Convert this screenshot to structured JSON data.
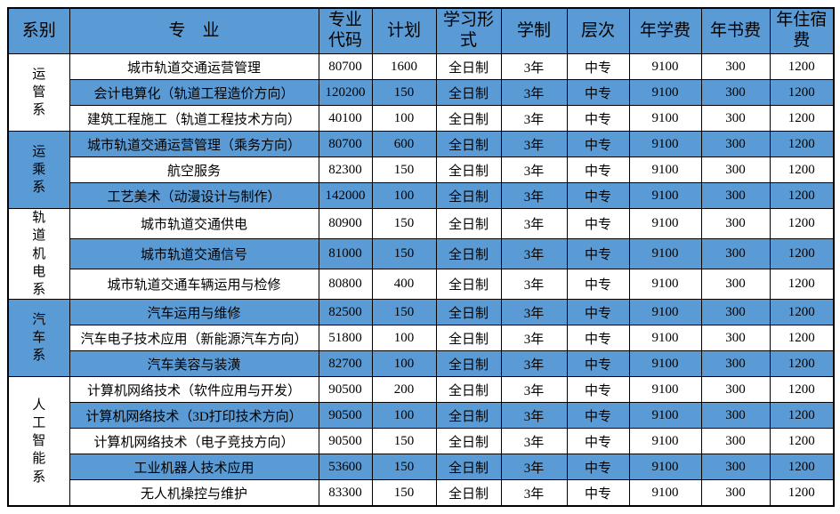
{
  "colors": {
    "header_bg": "#5B9BD5",
    "stripe_bg": "#5B9BD5",
    "border": "#000000",
    "text": "#000000"
  },
  "table": {
    "headers": [
      "系别",
      "专　业",
      "专业代码",
      "计划",
      "学习形式",
      "学制",
      "层次",
      "年学费",
      "年书费",
      "年住宿费"
    ],
    "departments": [
      {
        "name": "运管系",
        "rows": [
          {
            "major": "城市轨道交通运营管理",
            "code": "80700",
            "plan": "1600",
            "form": "全日制",
            "duration": "3年",
            "level": "中专",
            "tuition": "9100",
            "book": "300",
            "lodging": "1200"
          },
          {
            "major": "会计电算化（轨道工程造价方向）",
            "code": "120200",
            "plan": "150",
            "form": "全日制",
            "duration": "3年",
            "level": "中专",
            "tuition": "9100",
            "book": "300",
            "lodging": "1200"
          },
          {
            "major": "建筑工程施工（轨道工程技术方向）",
            "code": "40100",
            "plan": "100",
            "form": "全日制",
            "duration": "3年",
            "level": "中专",
            "tuition": "9100",
            "book": "300",
            "lodging": "1200"
          }
        ]
      },
      {
        "name": "运乘系",
        "rows": [
          {
            "major": "城市轨道交通运营管理（乘务方向）",
            "code": "80700",
            "plan": "600",
            "form": "全日制",
            "duration": "3年",
            "level": "中专",
            "tuition": "9100",
            "book": "300",
            "lodging": "1200"
          },
          {
            "major": "航空服务",
            "code": "82300",
            "plan": "150",
            "form": "全日制",
            "duration": "3年",
            "level": "中专",
            "tuition": "9100",
            "book": "300",
            "lodging": "1200"
          },
          {
            "major": "工艺美术（动漫设计与制作）",
            "code": "142000",
            "plan": "100",
            "form": "全日制",
            "duration": "3年",
            "level": "中专",
            "tuition": "9100",
            "book": "300",
            "lodging": "1200"
          }
        ]
      },
      {
        "name": "轨道机电系",
        "rows": [
          {
            "major": "城市轨道交通供电",
            "code": "80900",
            "plan": "150",
            "form": "全日制",
            "duration": "3年",
            "level": "中专",
            "tuition": "9100",
            "book": "300",
            "lodging": "1200"
          },
          {
            "major": "城市轨道交通信号",
            "code": "81000",
            "plan": "150",
            "form": "全日制",
            "duration": "3年",
            "level": "中专",
            "tuition": "9100",
            "book": "300",
            "lodging": "1200"
          },
          {
            "major": "城市轨道交通车辆运用与检修",
            "code": "80800",
            "plan": "400",
            "form": "全日制",
            "duration": "3年",
            "level": "中专",
            "tuition": "9100",
            "book": "300",
            "lodging": "1200"
          }
        ]
      },
      {
        "name": "汽车系",
        "rows": [
          {
            "major": "汽车运用与维修",
            "code": "82500",
            "plan": "150",
            "form": "全日制",
            "duration": "3年",
            "level": "中专",
            "tuition": "9100",
            "book": "300",
            "lodging": "1200"
          },
          {
            "major": "汽车电子技术应用（新能源汽车方向）",
            "code": "51800",
            "plan": "100",
            "form": "全日制",
            "duration": "3年",
            "level": "中专",
            "tuition": "9100",
            "book": "300",
            "lodging": "1200"
          },
          {
            "major": "汽车美容与装潢",
            "code": "82700",
            "plan": "100",
            "form": "全日制",
            "duration": "3年",
            "level": "中专",
            "tuition": "9100",
            "book": "300",
            "lodging": "1200"
          }
        ]
      },
      {
        "name": "人工智能系",
        "rows": [
          {
            "major": "计算机网络技术（软件应用与开发）",
            "code": "90500",
            "plan": "200",
            "form": "全日制",
            "duration": "3年",
            "level": "中专",
            "tuition": "9100",
            "book": "300",
            "lodging": "1200"
          },
          {
            "major": "计算机网络技术（3D打印技术方向）",
            "code": "90500",
            "plan": "100",
            "form": "全日制",
            "duration": "3年",
            "level": "中专",
            "tuition": "9100",
            "book": "300",
            "lodging": "1200"
          },
          {
            "major": "计算机网络技术（电子竞技方向）",
            "code": "90500",
            "plan": "150",
            "form": "全日制",
            "duration": "3年",
            "level": "中专",
            "tuition": "9100",
            "book": "300",
            "lodging": "1200"
          },
          {
            "major": "工业机器人技术应用",
            "code": "53600",
            "plan": "150",
            "form": "全日制",
            "duration": "3年",
            "level": "中专",
            "tuition": "9100",
            "book": "300",
            "lodging": "1200"
          },
          {
            "major": "无人机操控与维护",
            "code": "83300",
            "plan": "150",
            "form": "全日制",
            "duration": "3年",
            "level": "中专",
            "tuition": "9100",
            "book": "300",
            "lodging": "1200"
          }
        ]
      }
    ]
  }
}
